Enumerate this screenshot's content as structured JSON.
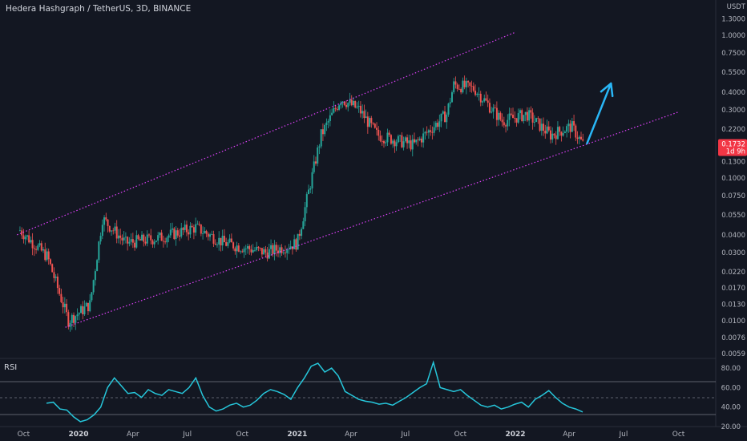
{
  "header": {
    "title": "Hedera Hashgraph / TetherUS, 3D, BINANCE"
  },
  "price_axis": {
    "currency": "USDT",
    "labels": [
      "1.3000",
      "1.0000",
      "0.7500",
      "0.5500",
      "0.4000",
      "0.3000",
      "0.2200",
      "0.1732",
      "0.1300",
      "0.1000",
      "0.0750",
      "0.0550",
      "0.0400",
      "0.0300",
      "0.0220",
      "0.0170",
      "0.0130",
      "0.0100",
      "0.0076",
      "0.0059"
    ],
    "last_price": "0.1732",
    "last_price_countdown": "1d 9h"
  },
  "rsi": {
    "label": "RSI",
    "axis_labels": [
      "80.00",
      "60.00",
      "40.00",
      "20.00"
    ]
  },
  "time_axis": {
    "labels": [
      "Oct",
      "2020",
      "Apr",
      "Jul",
      "Oct",
      "2021",
      "Apr",
      "Jul",
      "Oct",
      "2022",
      "Apr",
      "Jul",
      "Oct"
    ]
  },
  "colors": {
    "background": "#131722",
    "up_candle": "#26a69a",
    "down_candle": "#ef5350",
    "channel_line": "#e040fb",
    "arrow": "#29b6f6",
    "rsi_line": "#26c6da",
    "price_tag": "#f23645"
  },
  "chart_data": {
    "type": "candlestick",
    "title": "Hedera Hashgraph / TetherUS, 3D, BINANCE",
    "y_scale": "log",
    "ylim": [
      0.0059,
      1.3
    ],
    "x_range": [
      "2019-09",
      "2022-11"
    ],
    "series": [
      {
        "values": [
          {
            "x": "2019-09-25",
            "y": 0.043
          },
          {
            "x": "2019-11-10",
            "y": 0.028
          },
          {
            "x": "2019-12-15",
            "y": 0.01
          },
          {
            "x": "2020-01-20",
            "y": 0.013
          },
          {
            "x": "2020-02-10",
            "y": 0.052
          },
          {
            "x": "2020-03-20",
            "y": 0.035
          },
          {
            "x": "2020-05-15",
            "y": 0.038
          },
          {
            "x": "2020-07-15",
            "y": 0.045
          },
          {
            "x": "2020-09-01",
            "y": 0.035
          },
          {
            "x": "2020-11-10",
            "y": 0.03
          },
          {
            "x": "2021-01-01",
            "y": 0.035
          },
          {
            "x": "2021-02-10",
            "y": 0.2
          },
          {
            "x": "2021-03-15",
            "y": 0.36
          },
          {
            "x": "2021-04-15",
            "y": 0.3
          },
          {
            "x": "2021-05-15",
            "y": 0.2
          },
          {
            "x": "2021-07-15",
            "y": 0.17
          },
          {
            "x": "2021-09-08",
            "y": 0.28
          },
          {
            "x": "2021-09-20",
            "y": 0.45
          },
          {
            "x": "2021-10-25",
            "y": 0.42
          },
          {
            "x": "2021-12-10",
            "y": 0.25
          },
          {
            "x": "2022-01-20",
            "y": 0.28
          },
          {
            "x": "2022-03-01",
            "y": 0.2
          },
          {
            "x": "2022-04-05",
            "y": 0.23
          },
          {
            "x": "2022-04-25",
            "y": 0.17
          }
        ]
      }
    ],
    "rsi": {
      "ylim": [
        20,
        90
      ],
      "levels": [
        70,
        50,
        30
      ],
      "values": [
        44,
        45,
        38,
        37,
        30,
        25,
        27,
        32,
        40,
        60,
        70,
        62,
        54,
        55,
        50,
        58,
        54,
        52,
        58,
        56,
        54,
        60,
        70,
        52,
        40,
        36,
        38,
        42,
        44,
        40,
        42,
        47,
        54,
        58,
        56,
        53,
        48,
        60,
        70,
        82,
        85,
        76,
        80,
        72,
        56,
        52,
        48,
        46,
        45,
        43,
        44,
        42,
        46,
        50,
        55,
        60,
        64,
        86,
        60,
        58,
        56,
        58,
        52,
        47,
        42,
        40,
        42,
        38,
        40,
        43,
        45,
        40,
        48,
        52,
        57,
        50,
        44,
        40,
        38,
        35
      ]
    },
    "annotations": [
      {
        "type": "line",
        "label": "channel upper",
        "from": {
          "x": "2019-09-20",
          "y": 0.04
        },
        "to": {
          "x": "2022-01-01",
          "y": 1.05
        }
      },
      {
        "type": "line",
        "label": "channel lower",
        "from": {
          "x": "2019-12-10",
          "y": 0.009
        },
        "to": {
          "x": "2022-10-01",
          "y": 0.29
        }
      },
      {
        "type": "arrow",
        "from": {
          "x": "2022-05-01",
          "y": 0.175
        },
        "to": {
          "x": "2022-06-10",
          "y": 0.46
        }
      }
    ]
  }
}
